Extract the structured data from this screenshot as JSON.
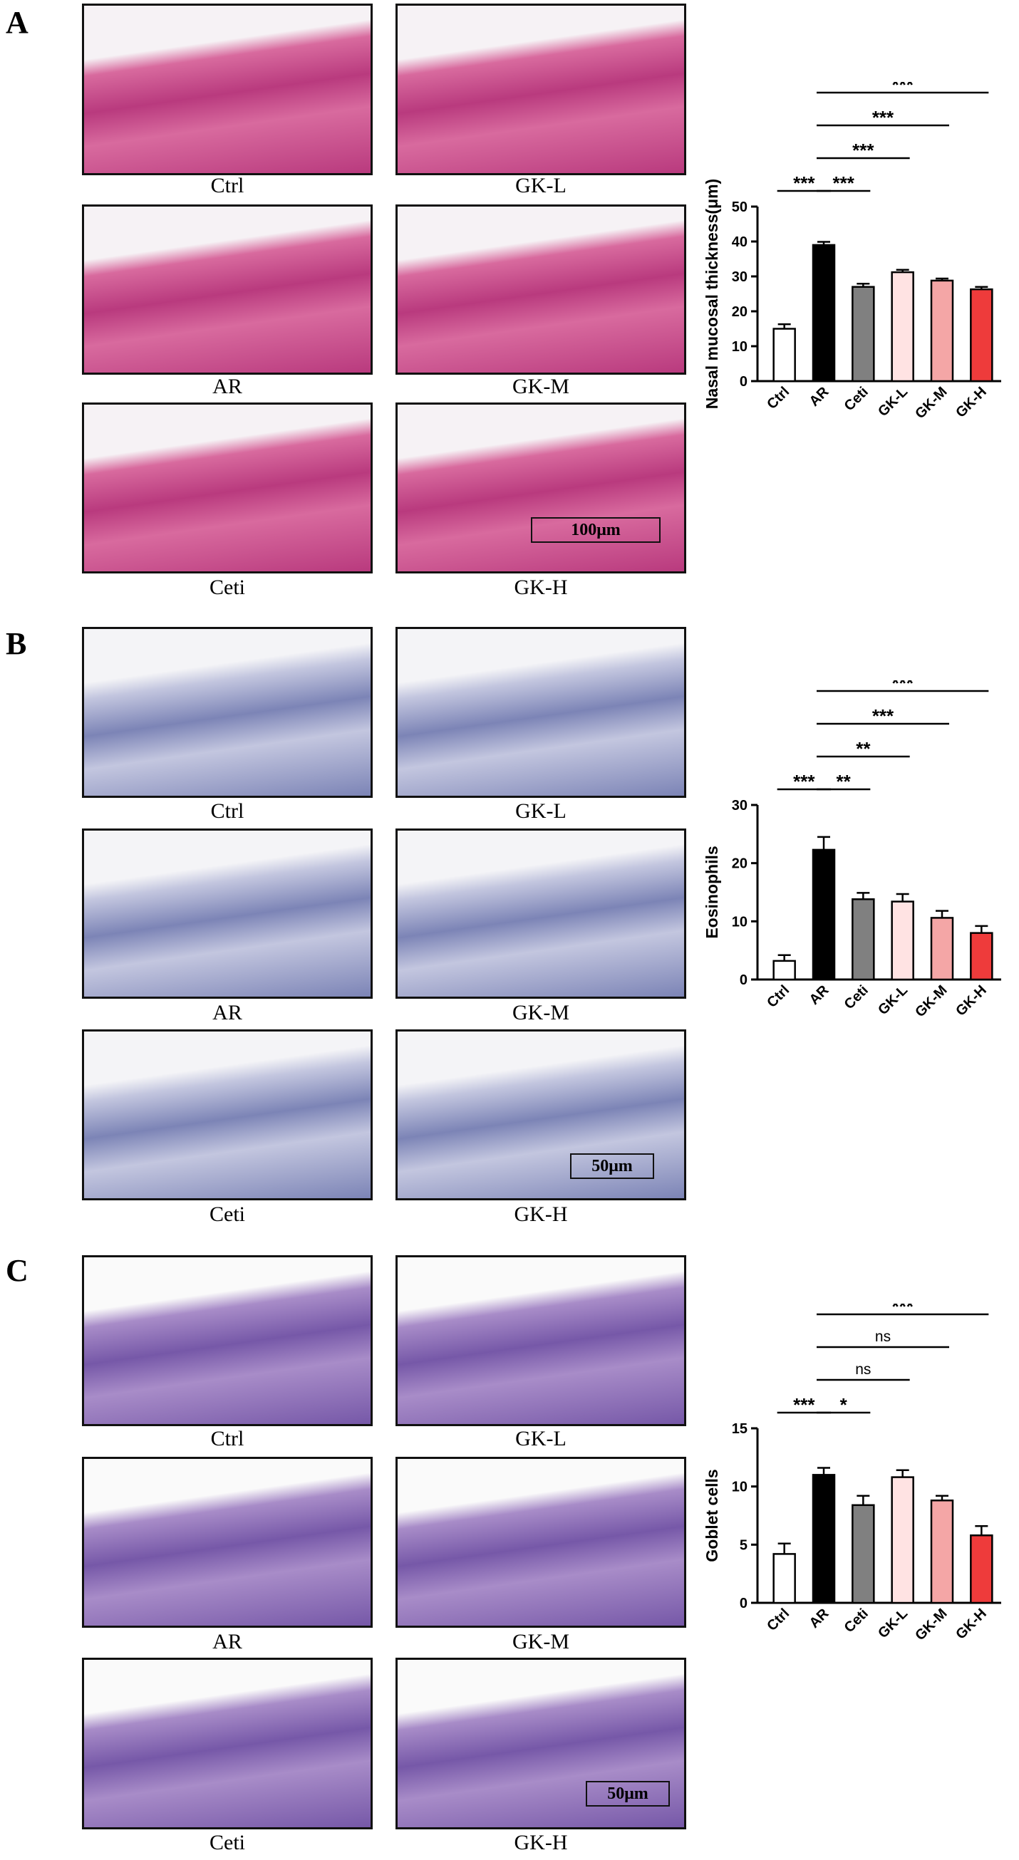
{
  "panels": [
    {
      "letter": "A",
      "stain": "he",
      "images": [
        {
          "caption": "Ctrl"
        },
        {
          "caption": "GK-L"
        },
        {
          "caption": "AR"
        },
        {
          "caption": "GK-M"
        },
        {
          "caption": "Ceti"
        },
        {
          "caption": "GK-H"
        }
      ],
      "scalebar": "100μm"
    },
    {
      "letter": "B",
      "stain": "ihc",
      "images": [
        {
          "caption": "Ctrl"
        },
        {
          "caption": "GK-L"
        },
        {
          "caption": "AR"
        },
        {
          "caption": "GK-M"
        },
        {
          "caption": "Ceti"
        },
        {
          "caption": "GK-H"
        }
      ],
      "scalebar": "50μm"
    },
    {
      "letter": "C",
      "stain": "pas",
      "images": [
        {
          "caption": "Ctrl"
        },
        {
          "caption": "GK-L"
        },
        {
          "caption": "AR"
        },
        {
          "caption": "GK-M"
        },
        {
          "caption": "Ceti"
        },
        {
          "caption": "GK-H"
        }
      ],
      "scalebar": "50μm"
    }
  ],
  "colors": {
    "he": [
      "#f6f2f5",
      "#d86a9e",
      "#b93a7e"
    ],
    "ihc": [
      "#f4f4f7",
      "#c3c6df",
      "#7c84b6"
    ],
    "pas": [
      "#fafafa",
      "#a88cc8",
      "#7658a8"
    ]
  },
  "chart_data": [
    {
      "type": "bar",
      "ylabel": "Nasal mucosal thickness(μm)",
      "categories": [
        "Ctrl",
        "AR",
        "Ceti",
        "GK-L",
        "GK-M",
        "GK-H"
      ],
      "values": [
        15,
        39,
        27,
        31.2,
        28.8,
        26.3
      ],
      "errors": [
        1.3,
        0.9,
        0.9,
        0.7,
        0.6,
        0.7
      ],
      "ylim": [
        0,
        50
      ],
      "yticks": [
        0,
        10,
        20,
        30,
        40,
        50
      ],
      "bar_colors": [
        "#ffffff",
        "#000000",
        "#808080",
        "#ffe3e3",
        "#f4a6a6",
        "#ee3b3b"
      ],
      "comparisons": [
        {
          "from": "Ctrl",
          "to": "AR",
          "label": "***"
        },
        {
          "from": "AR",
          "to": "Ceti",
          "label": "***"
        },
        {
          "from": "AR",
          "to": "GK-L",
          "label": "***"
        },
        {
          "from": "AR",
          "to": "GK-M",
          "label": "***"
        },
        {
          "from": "AR",
          "to": "GK-H",
          "label": "***"
        }
      ]
    },
    {
      "type": "bar",
      "ylabel": "Eosinophils",
      "categories": [
        "Ctrl",
        "AR",
        "Ceti",
        "GK-L",
        "GK-M",
        "GK-H"
      ],
      "values": [
        3.2,
        22.3,
        13.8,
        13.4,
        10.6,
        8
      ],
      "errors": [
        1,
        2.2,
        1.1,
        1.3,
        1.2,
        1.2
      ],
      "ylim": [
        0,
        30
      ],
      "yticks": [
        0,
        10,
        20,
        30
      ],
      "bar_colors": [
        "#ffffff",
        "#000000",
        "#808080",
        "#ffe3e3",
        "#f4a6a6",
        "#ee3b3b"
      ],
      "comparisons": [
        {
          "from": "Ctrl",
          "to": "AR",
          "label": "***"
        },
        {
          "from": "AR",
          "to": "Ceti",
          "label": "**"
        },
        {
          "from": "AR",
          "to": "GK-L",
          "label": "**"
        },
        {
          "from": "AR",
          "to": "GK-M",
          "label": "***"
        },
        {
          "from": "AR",
          "to": "GK-H",
          "label": "***"
        }
      ]
    },
    {
      "type": "bar",
      "ylabel": "Goblet cells",
      "categories": [
        "Ctrl",
        "AR",
        "Ceti",
        "GK-L",
        "GK-M",
        "GK-H"
      ],
      "values": [
        4.2,
        11,
        8.4,
        10.8,
        8.8,
        5.8
      ],
      "errors": [
        0.9,
        0.6,
        0.8,
        0.6,
        0.4,
        0.8
      ],
      "ylim": [
        0,
        15
      ],
      "yticks": [
        0,
        5,
        10,
        15
      ],
      "bar_colors": [
        "#ffffff",
        "#000000",
        "#808080",
        "#ffe3e3",
        "#f4a6a6",
        "#ee3b3b"
      ],
      "comparisons": [
        {
          "from": "Ctrl",
          "to": "AR",
          "label": "***"
        },
        {
          "from": "AR",
          "to": "Ceti",
          "label": "*"
        },
        {
          "from": "AR",
          "to": "GK-L",
          "label": "ns"
        },
        {
          "from": "AR",
          "to": "GK-M",
          "label": "ns"
        },
        {
          "from": "AR",
          "to": "GK-H",
          "label": "***"
        }
      ]
    }
  ]
}
